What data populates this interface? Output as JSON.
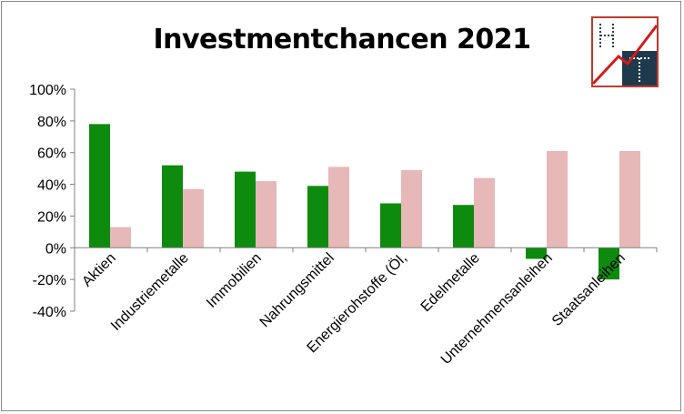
{
  "chart_data": {
    "type": "bar",
    "title": "Investmentchancen 2021",
    "categories": [
      "Aktien",
      "Industriemetalle",
      "Immobilien",
      "Nahrungsmittel",
      "Energierohstoffe (Öl,",
      "Edelmetalle",
      "Unternehmensanleihen",
      "Staatsanleihen"
    ],
    "series": [
      {
        "values": [
          78,
          52,
          48,
          39,
          28,
          27,
          -7,
          -20
        ],
        "color": "#0e8b0e"
      },
      {
        "values": [
          13,
          37,
          42,
          51,
          49,
          44,
          61,
          61
        ],
        "color": "#e6b8b7"
      }
    ],
    "ylim": [
      -40,
      100
    ],
    "yticks": [
      -40,
      -20,
      0,
      20,
      40,
      60,
      80,
      100
    ],
    "ytick_labels": [
      "-40%",
      "-20%",
      "0%",
      "20%",
      "40%",
      "60%",
      "80%",
      "100%"
    ],
    "xlabel": "",
    "ylabel": "",
    "grid": false,
    "legend": "none"
  },
  "logo": {
    "text": "HT",
    "colors": {
      "dark": "#1f3a4d",
      "accent": "#d01c1c",
      "border": "#c0392b"
    }
  }
}
